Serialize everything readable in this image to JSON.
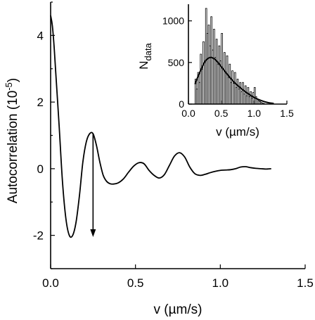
{
  "chart_data": [
    {
      "type": "line",
      "xlabel": "v (µm/s)",
      "ylabel_main": "Autocorrelation (10",
      "ylabel_sup": "-5",
      "ylabel_tail": ")",
      "xlim": [
        0,
        1.5
      ],
      "ylim": [
        -3,
        5
      ],
      "xticks": [
        0.0,
        0.5,
        1.0,
        1.5
      ],
      "xtick_labels": [
        "0.0",
        "0.5",
        "1.0",
        "1.5"
      ],
      "yticks": [
        -2,
        0,
        2,
        4
      ],
      "ytick_labels": [
        "-2",
        "0",
        "2",
        "4"
      ],
      "grid": false,
      "series": [
        {
          "x": [
            0.0,
            0.01,
            0.02,
            0.03,
            0.05,
            0.07,
            0.09,
            0.11,
            0.13,
            0.15,
            0.17,
            0.19,
            0.21,
            0.23,
            0.25,
            0.27,
            0.29,
            0.31,
            0.33,
            0.35,
            0.37,
            0.4,
            0.43,
            0.46,
            0.49,
            0.52,
            0.55,
            0.58,
            0.61,
            0.64,
            0.67,
            0.7,
            0.73,
            0.76,
            0.79,
            0.82,
            0.85,
            0.88,
            0.91,
            0.94,
            0.97,
            1.0,
            1.03,
            1.06,
            1.09,
            1.12,
            1.15,
            1.18,
            1.21,
            1.24,
            1.27,
            1.3
          ],
          "y": [
            4.6,
            4.3,
            3.7,
            2.9,
            1.3,
            -0.4,
            -1.5,
            -2.0,
            -2.0,
            -1.6,
            -0.8,
            0.2,
            0.8,
            1.05,
            1.05,
            0.7,
            0.2,
            -0.2,
            -0.38,
            -0.45,
            -0.46,
            -0.42,
            -0.3,
            -0.1,
            0.08,
            0.18,
            0.15,
            -0.05,
            -0.2,
            -0.28,
            -0.18,
            0.1,
            0.38,
            0.48,
            0.35,
            0.05,
            -0.15,
            -0.2,
            -0.17,
            -0.12,
            -0.08,
            -0.05,
            -0.04,
            -0.03,
            0.0,
            0.05,
            0.06,
            0.03,
            0.01,
            0.0,
            -0.01,
            0.0
          ]
        }
      ],
      "annotations": [
        {
          "type": "arrow",
          "x": 0.25,
          "y_from": 1.05,
          "y_to": -2.05
        }
      ]
    },
    {
      "type": "bar",
      "inset": true,
      "xlabel": "v (µm/s)",
      "ylabel_main": "N",
      "ylabel_sub": "data",
      "xlim": [
        0.0,
        1.5
      ],
      "ylim": [
        0,
        1200
      ],
      "xticks": [
        0.0,
        0.5,
        1.0,
        1.5
      ],
      "xtick_labels": [
        "0.0",
        "0.5",
        "1.0",
        "1.5"
      ],
      "yticks": [
        0,
        500,
        1000
      ],
      "ytick_labels": [
        "0",
        "500",
        "1000"
      ],
      "bin_width": 0.02,
      "x": [
        0.1,
        0.12,
        0.14,
        0.16,
        0.18,
        0.2,
        0.22,
        0.24,
        0.26,
        0.28,
        0.3,
        0.32,
        0.34,
        0.36,
        0.38,
        0.4,
        0.42,
        0.44,
        0.46,
        0.48,
        0.5,
        0.52,
        0.54,
        0.56,
        0.58,
        0.6,
        0.62,
        0.64,
        0.66,
        0.68,
        0.7,
        0.72,
        0.74,
        0.76,
        0.78,
        0.8,
        0.82,
        0.84,
        0.86,
        0.88,
        0.9,
        0.92,
        0.94,
        0.96,
        0.98,
        1.0,
        1.02,
        1.04,
        1.06,
        1.08,
        1.1,
        1.12,
        1.14
      ],
      "values": [
        300,
        180,
        380,
        260,
        600,
        420,
        750,
        500,
        1150,
        850,
        950,
        700,
        1050,
        650,
        900,
        560,
        780,
        480,
        700,
        520,
        850,
        420,
        620,
        380,
        580,
        320,
        480,
        260,
        400,
        250,
        380,
        200,
        300,
        180,
        260,
        150,
        260,
        120,
        220,
        100,
        200,
        90,
        150,
        70,
        140,
        200,
        90,
        60,
        40,
        30,
        20,
        12,
        8
      ],
      "fit": {
        "x": [
          0.1,
          0.15,
          0.2,
          0.25,
          0.3,
          0.35,
          0.4,
          0.45,
          0.5,
          0.55,
          0.6,
          0.7,
          0.8,
          0.9,
          1.0,
          1.1,
          1.2,
          1.3
        ],
        "y": [
          240,
          340,
          430,
          510,
          550,
          560,
          540,
          500,
          450,
          400,
          350,
          260,
          190,
          130,
          80,
          45,
          20,
          8
        ]
      }
    }
  ]
}
